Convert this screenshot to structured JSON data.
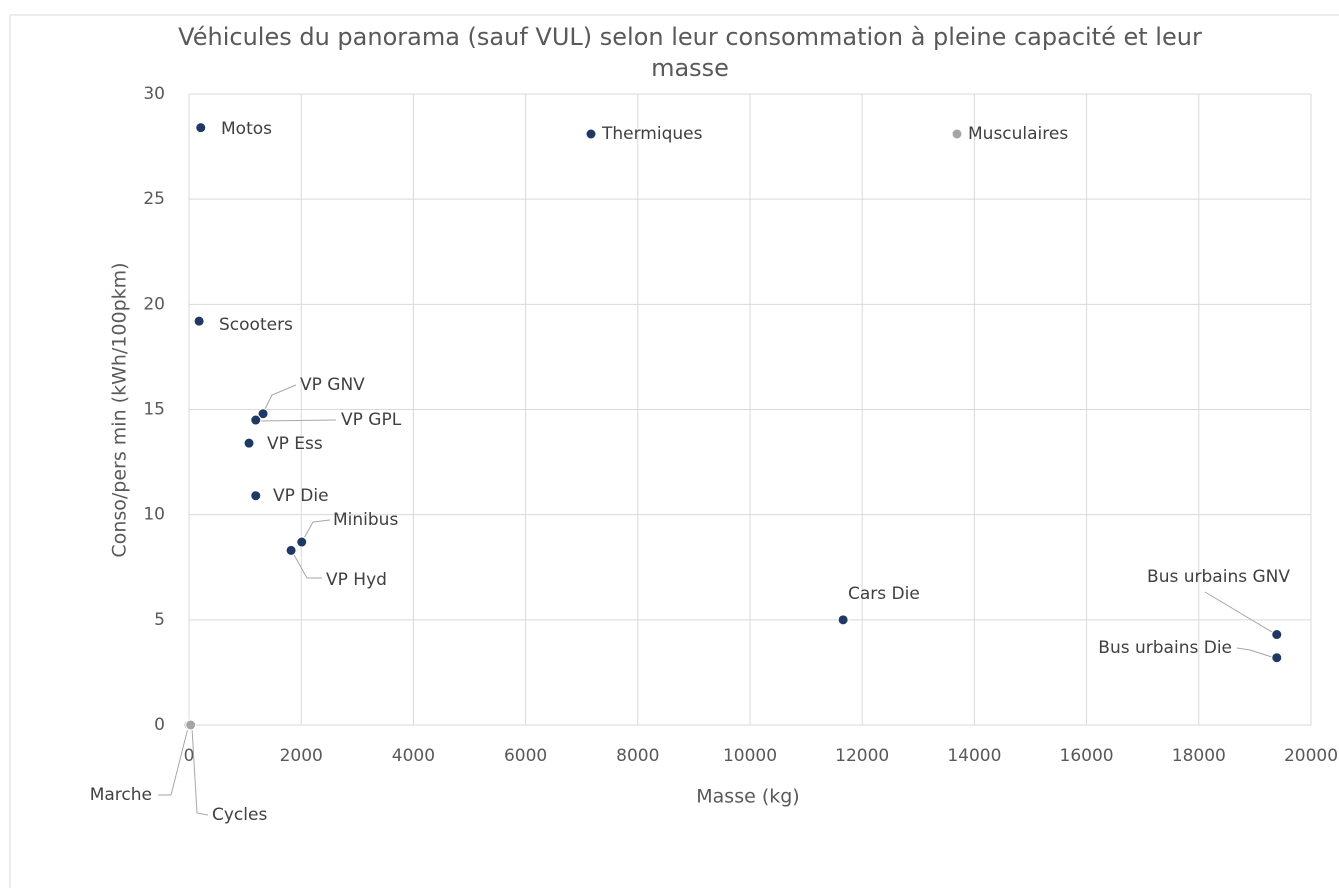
{
  "chart_data": {
    "type": "scatter",
    "title": "Véhicules du panorama (sauf VUL) selon leur consommation à pleine capacité et leur masse",
    "x_label": "Masse (kg)",
    "y_label": "Conso/pers min (kWh/100pkm)",
    "xlim": [
      0,
      20000
    ],
    "xticks": [
      0,
      2000,
      4000,
      6000,
      8000,
      10000,
      12000,
      14000,
      16000,
      18000,
      20000
    ],
    "ylim": [
      0,
      30
    ],
    "yticks": [
      0,
      5,
      10,
      15,
      20,
      25,
      30
    ],
    "grid": true,
    "series": [
      {
        "name": "Thermiques",
        "color": "#1f3864",
        "labels": [
          "Motos",
          "Scooters",
          "VP GNV",
          "VP GPL",
          "VP Ess",
          "VP Die",
          "Minibus",
          "VP Hyd",
          "Cars Die",
          "Bus urbains GNV",
          "Bus urbains Die"
        ],
        "x": [
          210,
          180,
          1320,
          1190,
          1070,
          1190,
          2010,
          1820,
          11660,
          19390,
          19390
        ],
        "values": [
          28.4,
          19.2,
          14.8,
          14.5,
          13.4,
          10.9,
          8.7,
          8.3,
          5.0,
          4.3,
          3.2
        ]
      },
      {
        "name": "Musculaires",
        "color": "#a5a5a5",
        "labels": [
          "Marche",
          "Cycles"
        ],
        "x": [
          0,
          30
        ],
        "values": [
          0,
          0
        ]
      }
    ]
  }
}
